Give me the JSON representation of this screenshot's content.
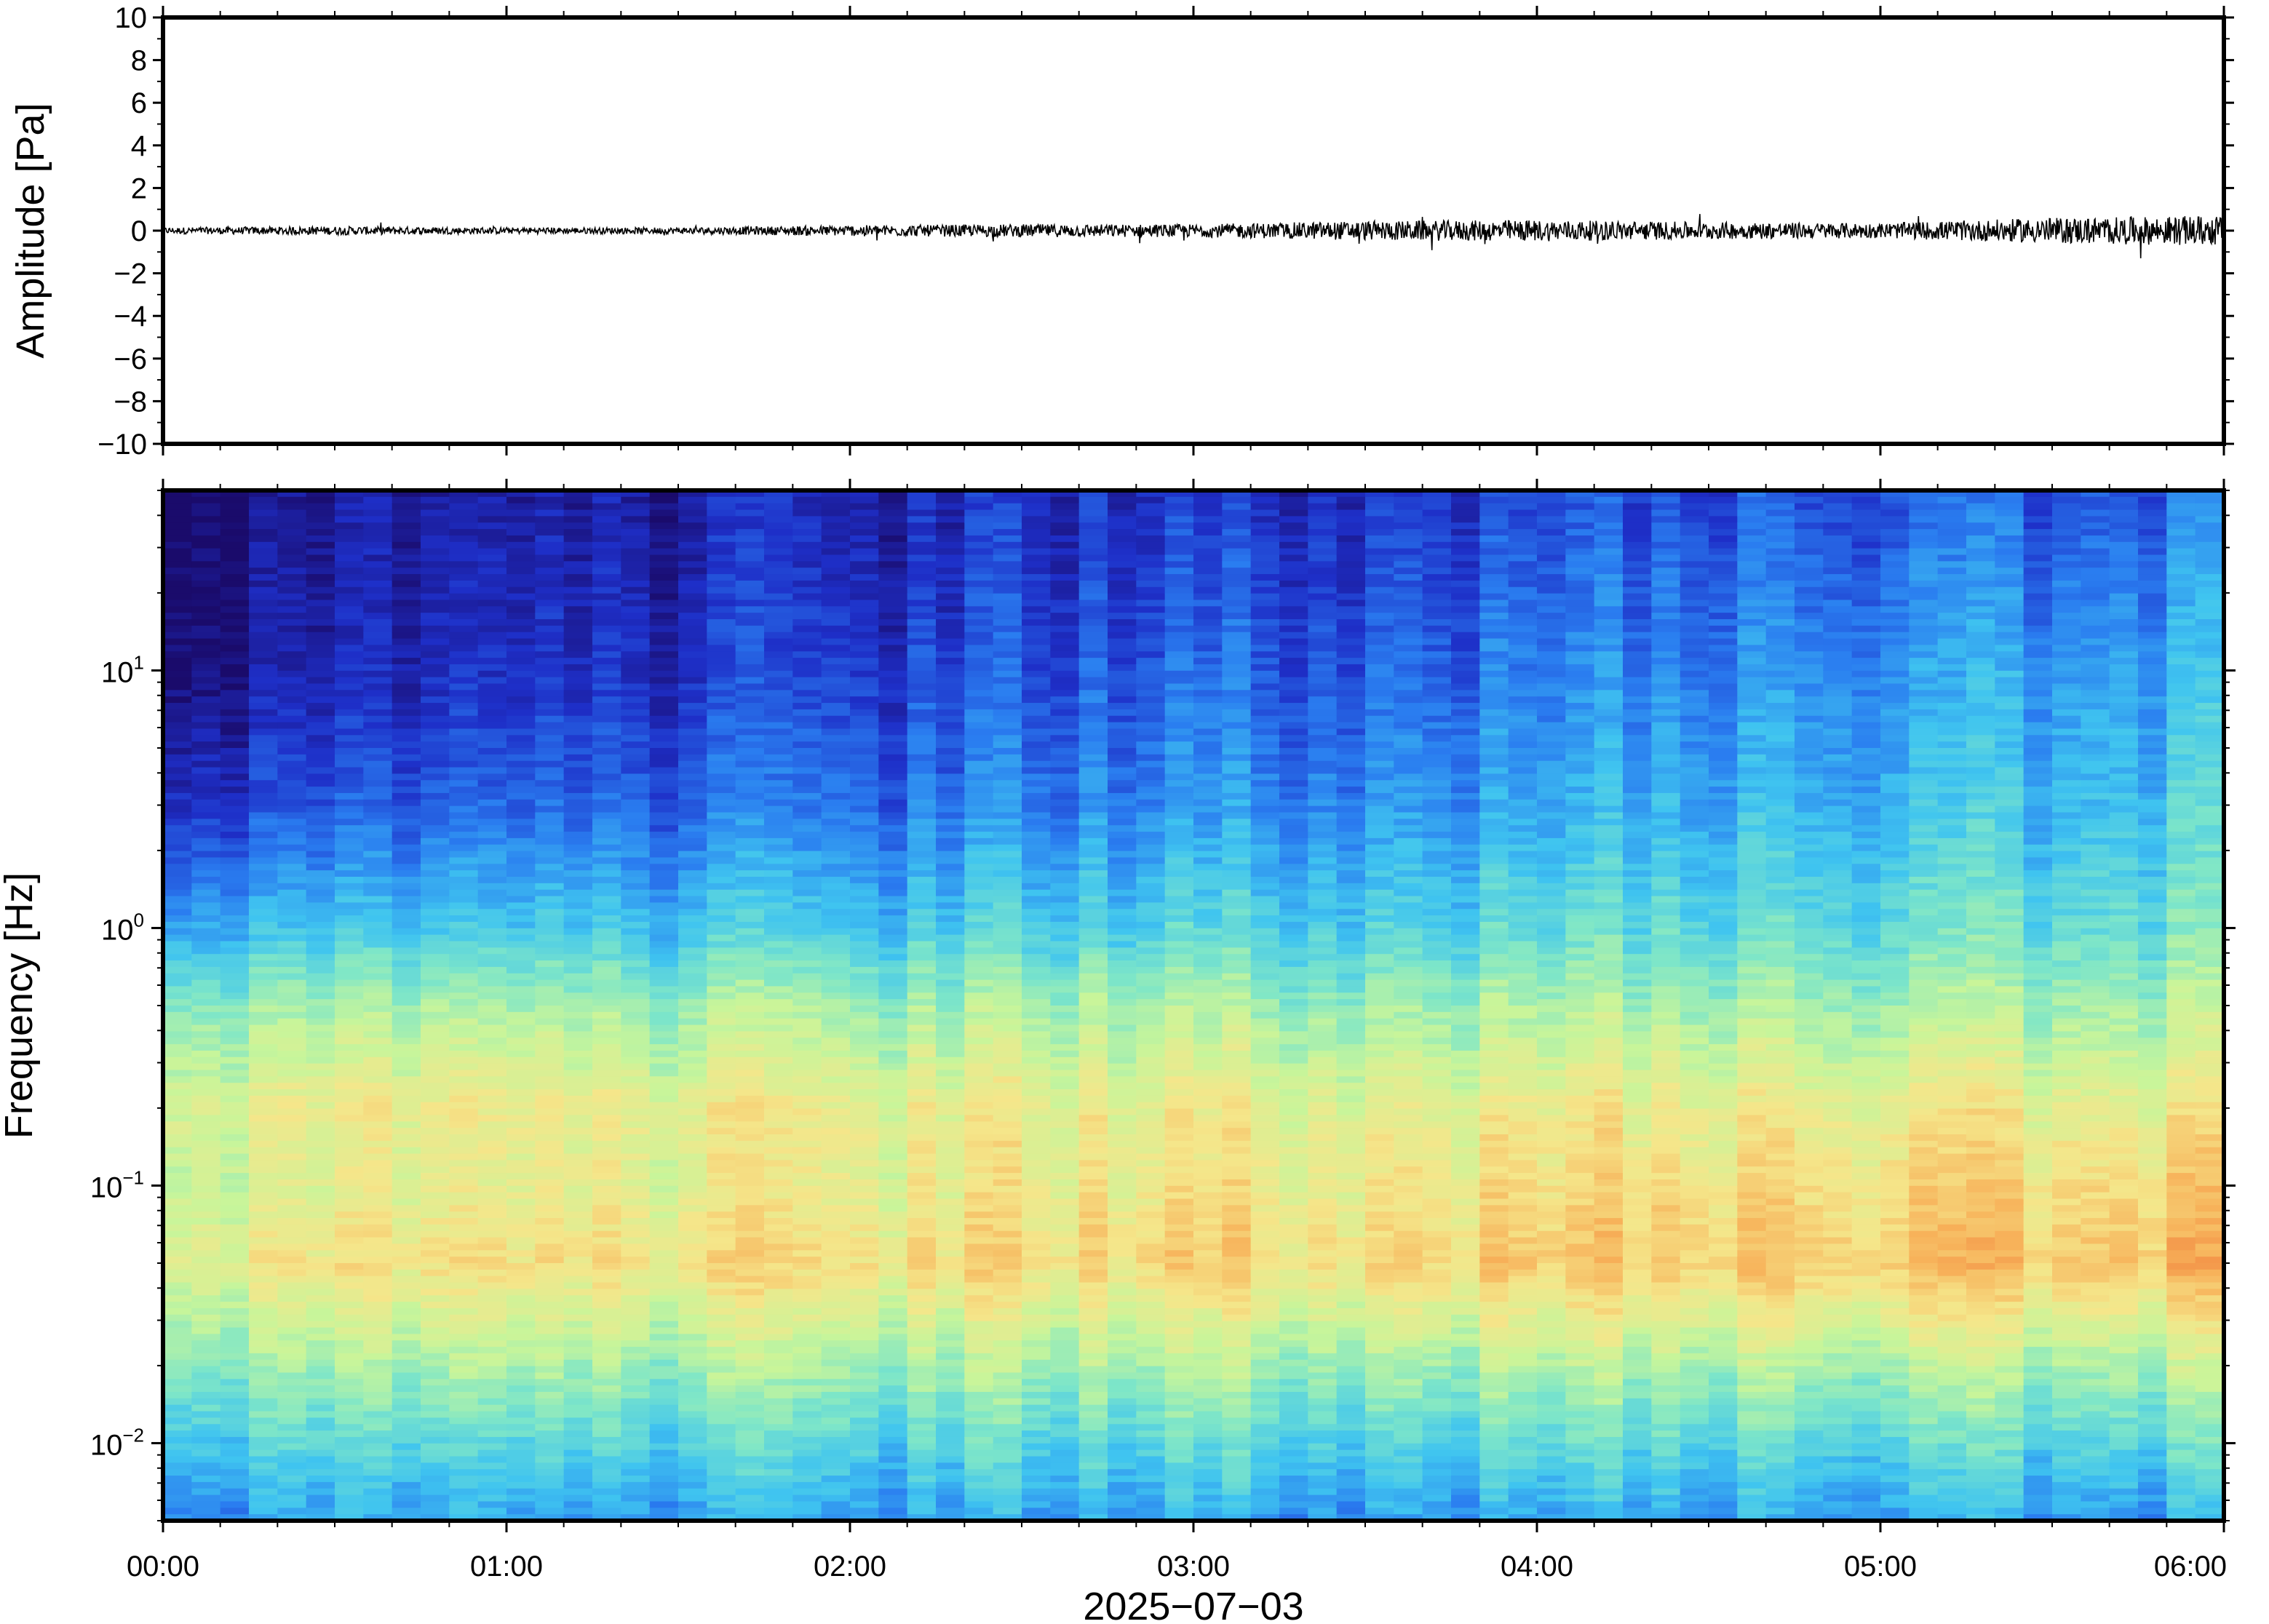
{
  "chart_data": [
    {
      "type": "line",
      "panel": "waveform",
      "ylabel": "Amplitude [Pa]",
      "xlabel": "",
      "ylim": [
        -10,
        10
      ],
      "yticks": [
        10,
        8,
        6,
        4,
        2,
        0,
        -2,
        -4,
        -6,
        -8,
        -10
      ],
      "ytick_labels": [
        "10",
        "8",
        "6",
        "4",
        "2",
        "0",
        "−2",
        "−4",
        "−6",
        "−8",
        "−10"
      ],
      "x_range": [
        "00:00",
        "06:00"
      ],
      "series": [
        {
          "x": [
            "00:00",
            "00:30",
            "01:00",
            "01:30",
            "02:00",
            "02:30",
            "03:00",
            "03:30",
            "04:00",
            "04:30",
            "05:00",
            "05:30",
            "06:00"
          ],
          "envelope": [
            0.15,
            0.2,
            0.15,
            0.15,
            0.25,
            0.3,
            0.3,
            0.45,
            0.5,
            0.4,
            0.35,
            0.6,
            0.7
          ]
        }
      ],
      "color": "#000000"
    },
    {
      "type": "heatmap",
      "panel": "spectrogram",
      "ylabel": "Frequency [Hz]",
      "xlabel": "2025−07−03",
      "y_scale": "log",
      "ylim": [
        0.005,
        50
      ],
      "yticks": [
        0.01,
        0.1,
        1,
        10
      ],
      "ytick_labels": [
        {
          "base": "10",
          "exp": "−2"
        },
        {
          "base": "10",
          "exp": "−1"
        },
        {
          "base": "10",
          "exp": "0"
        },
        {
          "base": "10",
          "exp": "1"
        }
      ],
      "xticks": [
        "00:00",
        "01:00",
        "02:00",
        "03:00",
        "04:00",
        "05:00",
        "06:00"
      ],
      "colormap": [
        "#1a0b6b",
        "#1e2fc8",
        "#2a7df0",
        "#3fc4f0",
        "#7ee6c8",
        "#c8f59a",
        "#f5e68a",
        "#f7b25a",
        "#f07a3a"
      ],
      "columns": 72,
      "profile": {
        "freq": [
          0.005,
          0.01,
          0.02,
          0.05,
          0.1,
          0.2,
          0.5,
          1,
          3,
          10,
          50
        ],
        "level_start": [
          0.3,
          0.42,
          0.55,
          0.72,
          0.66,
          0.7,
          0.55,
          0.35,
          0.15,
          0.05,
          0.02
        ],
        "level_end": [
          0.32,
          0.45,
          0.6,
          0.85,
          0.8,
          0.72,
          0.58,
          0.48,
          0.4,
          0.34,
          0.22
        ]
      }
    }
  ]
}
